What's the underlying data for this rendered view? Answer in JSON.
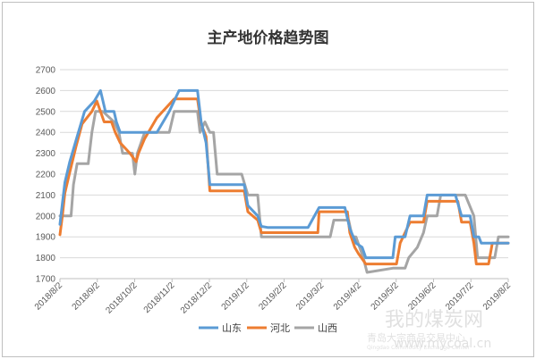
{
  "chart_data": {
    "type": "line",
    "title": "主产地价格趋势图",
    "ylim": [
      1700,
      2700
    ],
    "yticks": [
      1700,
      1800,
      1900,
      2000,
      2100,
      2200,
      2300,
      2400,
      2500,
      2600,
      2700
    ],
    "x_ticks": [
      "2018/8/2",
      "2018/9/2",
      "2018/10/2",
      "2018/11/2",
      "2018/12/2",
      "2019/1/2",
      "2019/2/2",
      "2019/3/2",
      "2019/4/2",
      "2019/5/2",
      "2019/6/2",
      "2019/7/2",
      "2019/8/2"
    ],
    "xlim": [
      "2018-08-02",
      "2019-08-02"
    ],
    "grid": "horizontal",
    "legend_position": "bottom",
    "series": [
      {
        "name": "山东",
        "color": "#5b9bd5",
        "points": [
          [
            "2018-08-02",
            1960
          ],
          [
            "2018-08-04",
            2060
          ],
          [
            "2018-08-06",
            2160
          ],
          [
            "2018-08-10",
            2260
          ],
          [
            "2018-08-16",
            2380
          ],
          [
            "2018-08-22",
            2500
          ],
          [
            "2018-08-30",
            2550
          ],
          [
            "2018-09-04",
            2600
          ],
          [
            "2018-09-08",
            2500
          ],
          [
            "2018-09-15",
            2500
          ],
          [
            "2018-09-17",
            2450
          ],
          [
            "2018-09-20",
            2400
          ],
          [
            "2018-10-10",
            2400
          ],
          [
            "2018-10-20",
            2400
          ],
          [
            "2018-10-30",
            2500
          ],
          [
            "2018-11-07",
            2600
          ],
          [
            "2018-11-22",
            2600
          ],
          [
            "2018-11-25",
            2450
          ],
          [
            "2018-11-29",
            2350
          ],
          [
            "2018-12-02",
            2150
          ],
          [
            "2018-12-30",
            2150
          ],
          [
            "2019-01-02",
            2050
          ],
          [
            "2019-01-10",
            2000
          ],
          [
            "2019-01-13",
            1950
          ],
          [
            "2019-01-18",
            1945
          ],
          [
            "2019-02-20",
            1945
          ],
          [
            "2019-03-01",
            2040
          ],
          [
            "2019-03-22",
            2040
          ],
          [
            "2019-03-26",
            1940
          ],
          [
            "2019-03-31",
            1870
          ],
          [
            "2019-04-05",
            1850
          ],
          [
            "2019-04-08",
            1800
          ],
          [
            "2019-04-30",
            1800
          ],
          [
            "2019-05-02",
            1900
          ],
          [
            "2019-05-10",
            1900
          ],
          [
            "2019-05-14",
            2000
          ],
          [
            "2019-05-25",
            2000
          ],
          [
            "2019-05-28",
            2100
          ],
          [
            "2019-06-20",
            2100
          ],
          [
            "2019-06-25",
            2000
          ],
          [
            "2019-07-02",
            2000
          ],
          [
            "2019-07-05",
            1900
          ],
          [
            "2019-07-09",
            1900
          ],
          [
            "2019-07-11",
            1870
          ],
          [
            "2019-08-02",
            1870
          ]
        ]
      },
      {
        "name": "河北",
        "color": "#ed7d31",
        "points": [
          [
            "2018-08-02",
            1910
          ],
          [
            "2018-08-04",
            2000
          ],
          [
            "2018-08-06",
            2110
          ],
          [
            "2018-08-10",
            2210
          ],
          [
            "2018-08-15",
            2330
          ],
          [
            "2018-08-20",
            2440
          ],
          [
            "2018-08-28",
            2500
          ],
          [
            "2018-09-01",
            2550
          ],
          [
            "2018-09-07",
            2450
          ],
          [
            "2018-09-13",
            2450
          ],
          [
            "2018-09-16",
            2400
          ],
          [
            "2018-09-20",
            2350
          ],
          [
            "2018-09-28",
            2300
          ],
          [
            "2018-10-03",
            2260
          ],
          [
            "2018-10-05",
            2300
          ],
          [
            "2018-10-10",
            2370
          ],
          [
            "2018-10-20",
            2470
          ],
          [
            "2018-11-03",
            2560
          ],
          [
            "2018-11-22",
            2560
          ],
          [
            "2018-11-25",
            2440
          ],
          [
            "2018-11-29",
            2380
          ],
          [
            "2018-12-02",
            2120
          ],
          [
            "2018-12-30",
            2120
          ],
          [
            "2019-01-02",
            2020
          ],
          [
            "2019-01-10",
            1980
          ],
          [
            "2019-01-13",
            1920
          ],
          [
            "2019-02-28",
            1920
          ],
          [
            "2019-03-01",
            2020
          ],
          [
            "2019-03-24",
            2020
          ],
          [
            "2019-03-26",
            1920
          ],
          [
            "2019-03-30",
            1850
          ],
          [
            "2019-04-02",
            1820
          ],
          [
            "2019-04-08",
            1770
          ],
          [
            "2019-05-03",
            1770
          ],
          [
            "2019-05-06",
            1870
          ],
          [
            "2019-05-14",
            1970
          ],
          [
            "2019-05-25",
            1970
          ],
          [
            "2019-05-28",
            2070
          ],
          [
            "2019-06-22",
            2070
          ],
          [
            "2019-06-25",
            1970
          ],
          [
            "2019-07-02",
            1970
          ],
          [
            "2019-07-05",
            1870
          ],
          [
            "2019-07-07",
            1770
          ],
          [
            "2019-07-17",
            1770
          ],
          [
            "2019-07-20",
            1870
          ],
          [
            "2019-08-02",
            1870
          ]
        ]
      },
      {
        "name": "山西",
        "color": "#a5a5a5",
        "points": [
          [
            "2018-08-02",
            2000
          ],
          [
            "2018-08-11",
            2000
          ],
          [
            "2018-08-13",
            2150
          ],
          [
            "2018-08-16",
            2250
          ],
          [
            "2018-08-25",
            2250
          ],
          [
            "2018-08-28",
            2400
          ],
          [
            "2018-08-31",
            2500
          ],
          [
            "2018-09-06",
            2500
          ],
          [
            "2018-09-15",
            2450
          ],
          [
            "2018-09-19",
            2400
          ],
          [
            "2018-09-22",
            2300
          ],
          [
            "2018-09-30",
            2300
          ],
          [
            "2018-10-02",
            2200
          ],
          [
            "2018-10-04",
            2300
          ],
          [
            "2018-10-10",
            2400
          ],
          [
            "2018-10-30",
            2400
          ],
          [
            "2018-11-03",
            2500
          ],
          [
            "2018-11-22",
            2500
          ],
          [
            "2018-11-24",
            2400
          ],
          [
            "2018-11-28",
            2450
          ],
          [
            "2018-12-02",
            2400
          ],
          [
            "2018-12-05",
            2400
          ],
          [
            "2018-12-08",
            2200
          ],
          [
            "2018-12-28",
            2200
          ],
          [
            "2019-01-02",
            2100
          ],
          [
            "2019-01-10",
            2100
          ],
          [
            "2019-01-13",
            1900
          ],
          [
            "2019-03-10",
            1900
          ],
          [
            "2019-03-13",
            1980
          ],
          [
            "2019-03-25",
            1980
          ],
          [
            "2019-03-28",
            1900
          ],
          [
            "2019-03-31",
            1900
          ],
          [
            "2019-04-06",
            1800
          ],
          [
            "2019-04-09",
            1730
          ],
          [
            "2019-04-30",
            1750
          ],
          [
            "2019-05-10",
            1750
          ],
          [
            "2019-05-13",
            1800
          ],
          [
            "2019-05-20",
            1850
          ],
          [
            "2019-05-25",
            1920
          ],
          [
            "2019-05-28",
            2000
          ],
          [
            "2019-06-05",
            2000
          ],
          [
            "2019-06-08",
            2100
          ],
          [
            "2019-06-28",
            2100
          ],
          [
            "2019-07-05",
            2000
          ],
          [
            "2019-07-08",
            1800
          ],
          [
            "2019-07-22",
            1800
          ],
          [
            "2019-07-25",
            1900
          ],
          [
            "2019-08-02",
            1900
          ]
        ]
      }
    ]
  },
  "watermark": {
    "brand": "我的煤炭网",
    "company": "青岛大宗商品交易中心",
    "company_en": "Qingdao Commodity Exchange Center",
    "url": "www.mycoal.cn"
  }
}
